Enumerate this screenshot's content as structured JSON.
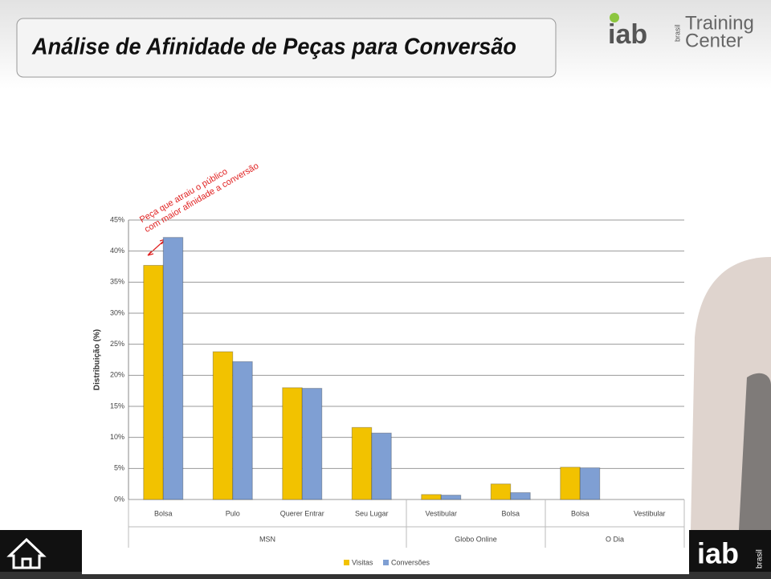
{
  "header": {
    "title": "Análise de Afinidade de Peças para Conversão",
    "logo": {
      "brand": "iab",
      "country": "brasil",
      "line1": "Training",
      "line2": "Center"
    },
    "footer_logo": {
      "brand": "iab",
      "country": "brasil"
    }
  },
  "chart_data": {
    "type": "bar",
    "y_label": "Distribuição (%)",
    "annotation": [
      "Peça que atraiu o público",
      "com maior afinidade a conversão"
    ],
    "annotation_color": "#e02020",
    "category_groups": [
      {
        "name": "MSN",
        "categories": [
          "Bolsa",
          "Pulo",
          "Querer Entrar",
          "Seu Lugar"
        ]
      },
      {
        "name": "Globo Online",
        "categories": [
          "Vestibular",
          "Bolsa"
        ]
      },
      {
        "name": "O Dia",
        "categories": [
          "Bolsa",
          "Vestibular"
        ]
      }
    ],
    "series": [
      {
        "name": "Visitas",
        "color": "#f2c200",
        "values": [
          37.7,
          23.8,
          18.0,
          11.6,
          0.8,
          2.5,
          5.2,
          0
        ]
      },
      {
        "name": "Conversões",
        "color": "#7f9fd3",
        "values": [
          42.2,
          22.2,
          17.9,
          10.7,
          0.7,
          1.1,
          5.1,
          0
        ]
      }
    ],
    "ylim": [
      0,
      45
    ],
    "yticks": [
      {
        "value": 0,
        "label": "0%"
      },
      {
        "value": 5,
        "label": "5%"
      },
      {
        "value": 10,
        "label": "10%"
      },
      {
        "value": 15,
        "label": "15%"
      },
      {
        "value": 20,
        "label": "20%"
      },
      {
        "value": 25,
        "label": "25%"
      },
      {
        "value": 30,
        "label": "30%"
      },
      {
        "value": 35,
        "label": "35%"
      },
      {
        "value": 40,
        "label": "40%"
      },
      {
        "value": 45,
        "label": "45%"
      }
    ],
    "grid": true,
    "legend": "bottom"
  }
}
